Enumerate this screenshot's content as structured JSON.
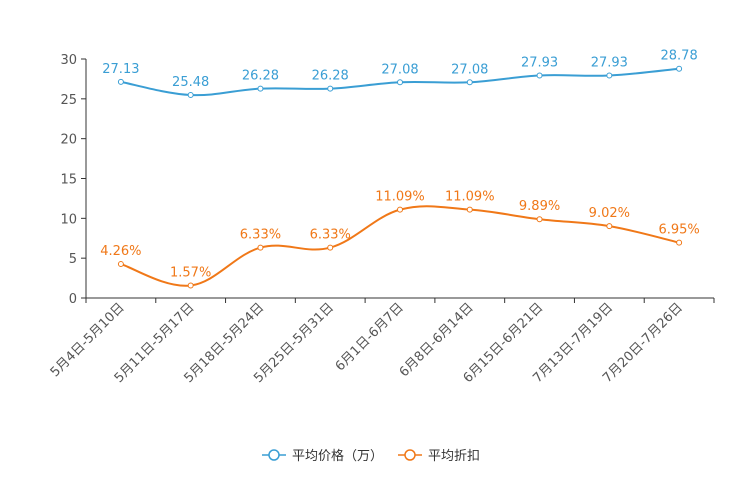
{
  "chart_data": {
    "type": "line",
    "title": "",
    "xlabel": "",
    "ylabel": "",
    "ylim": [
      0,
      30
    ],
    "yticks": [
      0,
      5,
      10,
      15,
      20,
      25,
      30
    ],
    "categories": [
      "5月4日-5月10日",
      "5月11日-5月17日",
      "5月18日-5月24日",
      "5月25日-5月31日",
      "6月1日-6月7日",
      "6月8日-6月14日",
      "6月15日-6月21日",
      "7月13日-7月19日",
      "7月20日-7月26日"
    ],
    "series": [
      {
        "name": "平均价格（万）",
        "color": "#3a9ed4",
        "values": [
          27.13,
          25.48,
          26.28,
          26.28,
          27.08,
          27.08,
          27.93,
          27.93,
          28.78
        ],
        "labels": [
          "27.13",
          "25.48",
          "26.28",
          "26.28",
          "27.08",
          "27.08",
          "27.93",
          "27.93",
          "28.78"
        ]
      },
      {
        "name": "平均折扣",
        "color": "#f07818",
        "values": [
          4.26,
          1.57,
          6.33,
          6.33,
          11.09,
          11.09,
          9.89,
          9.02,
          6.95
        ],
        "labels": [
          "4.26%",
          "1.57%",
          "6.33%",
          "6.33%",
          "11.09%",
          "11.09%",
          "9.89%",
          "9.02%",
          "6.95%"
        ]
      }
    ],
    "legend": "bottom-center",
    "grid": false
  }
}
